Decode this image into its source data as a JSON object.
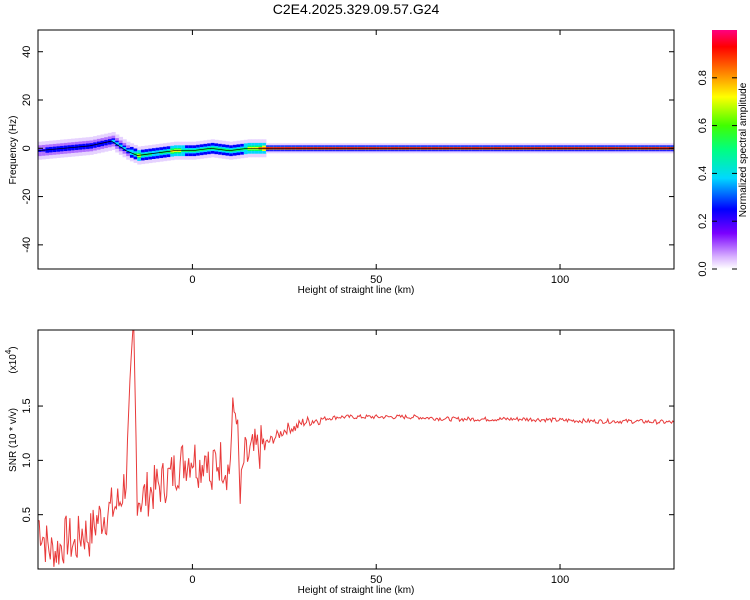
{
  "chart_data": [
    {
      "type": "heatmap",
      "title": "C2E4.2025.329.09.57.G24",
      "xlabel": "Height of straight line (km)",
      "ylabel": "Frequency (Hz)",
      "xlim": [
        -42,
        131
      ],
      "ylim": [
        -50,
        49
      ],
      "xticks": [
        0,
        50,
        100
      ],
      "yticks": [
        -40,
        -20,
        0,
        20,
        40
      ],
      "colorbar": {
        "label": "Normalized spectral amplitude",
        "ticks": [
          "0.0",
          "0.2",
          "0.4",
          "0.6",
          "0.8"
        ],
        "range": [
          0,
          1
        ]
      },
      "ridge": [
        {
          "x": -42,
          "freq": -1,
          "amp": 0.3
        },
        {
          "x": -35,
          "freq": 0,
          "amp": 0.35
        },
        {
          "x": -28,
          "freq": 1,
          "amp": 0.35
        },
        {
          "x": -22,
          "freq": 3,
          "amp": 0.4
        },
        {
          "x": -18,
          "freq": -1,
          "amp": 0.4
        },
        {
          "x": -15,
          "freq": -3,
          "amp": 0.7
        },
        {
          "x": -10,
          "freq": -2,
          "amp": 0.5
        },
        {
          "x": -5,
          "freq": -1,
          "amp": 0.75
        },
        {
          "x": 0,
          "freq": -1,
          "amp": 0.55
        },
        {
          "x": 5,
          "freq": 0,
          "amp": 0.6
        },
        {
          "x": 10,
          "freq": -1,
          "amp": 0.55
        },
        {
          "x": 15,
          "freq": 0,
          "amp": 0.7
        },
        {
          "x": 20,
          "freq": 0,
          "amp": 0.95
        },
        {
          "x": 131,
          "freq": 0,
          "amp": 0.95
        }
      ]
    },
    {
      "type": "line",
      "xlabel": "Height of straight line (km)",
      "ylabel": "SNR (10 * v/v)",
      "y_multiplier": "(x10",
      "y_multiplier_exp": "4",
      "y_multiplier_close": ")",
      "xlim": [
        -42,
        131
      ],
      "ylim": [
        0,
        2.2
      ],
      "xticks": [
        0,
        50,
        100
      ],
      "yticks": [
        0.5,
        1.0,
        1.5
      ],
      "series": [
        {
          "color": "#e83a3a",
          "x": [
            -42,
            -40,
            -38,
            -36,
            -34,
            -32,
            -30,
            -28,
            -26,
            -24,
            -22,
            -20,
            -18,
            -16,
            -15,
            -14,
            -12,
            -10,
            -8,
            -6,
            -4,
            -2,
            0,
            2,
            4,
            5,
            6,
            8,
            10,
            11,
            12,
            13,
            14,
            16,
            18,
            20,
            22,
            24,
            26,
            28,
            30,
            35,
            40,
            50,
            60,
            70,
            80,
            90,
            100,
            110,
            120,
            131
          ],
          "y": [
            0.45,
            0.25,
            0.15,
            0.2,
            0.3,
            0.2,
            0.35,
            0.3,
            0.45,
            0.5,
            0.55,
            0.6,
            0.85,
            2.2,
            0.7,
            0.65,
            0.7,
            0.75,
            0.8,
            0.85,
            0.95,
            1.0,
            1.05,
            0.95,
            1.1,
            0.7,
            1.0,
            1.0,
            0.9,
            1.4,
            1.5,
            0.6,
            1.0,
            1.05,
            1.1,
            1.15,
            1.2,
            1.25,
            1.3,
            1.3,
            1.35,
            1.38,
            1.4,
            1.4,
            1.4,
            1.38,
            1.38,
            1.38,
            1.37,
            1.36,
            1.36,
            1.35
          ]
        }
      ]
    }
  ]
}
